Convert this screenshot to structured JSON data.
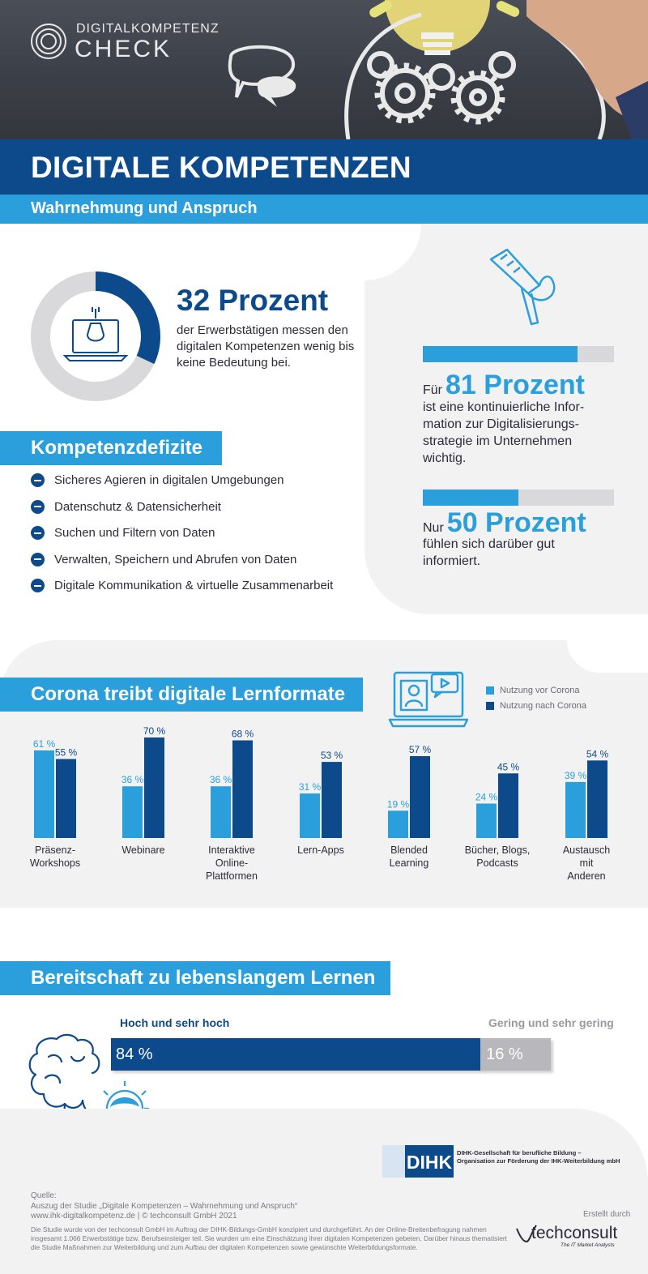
{
  "brand": {
    "line1": "DIGITALKOMPETENZ",
    "line2": "CHECK"
  },
  "header": {
    "title": "DIGITALE KOMPETENZEN",
    "subtitle": "Wahrnehmung und Anspruch"
  },
  "colors": {
    "dark_blue": "#0d4a8c",
    "light_blue": "#2a9fdb",
    "grey": "#d9d9db",
    "panel": "#f2f2f3"
  },
  "stat32": {
    "value": 32,
    "headline": "32 Prozent",
    "text": "der Erwerbstätigen messen den digitalen Kompetenzen wenig bis keine Bedeutung bei."
  },
  "stat81": {
    "prefix": "Für",
    "value": 81,
    "number_label": "81 Prozent",
    "text": "ist eine kontinuierliche Infor-mation zur Digitalisierungs-strategie im Unternehmen wichtig."
  },
  "stat50": {
    "prefix": "Nur",
    "value": 50,
    "number_label": "50 Prozent",
    "text": "fühlen sich darüber gut informiert."
  },
  "deficits": {
    "title": "Kompetenzdefizite",
    "items": [
      "Sicheres Agieren in digitalen Umgebungen",
      "Datenschutz & Datensicherheit",
      "Suchen und Filtern von Daten",
      "Verwalten, Speichern und Abrufen von Daten",
      "Digitale Kommunikation & virtuelle Zusammenarbeit"
    ]
  },
  "chart_data": {
    "type": "bar",
    "title": "Corona treibt digitale Lernformate",
    "categories": [
      [
        "Präsenz-",
        "Workshops"
      ],
      [
        "Webinare"
      ],
      [
        "Interaktive",
        "Online-",
        "Plattformen"
      ],
      [
        "Lern-Apps"
      ],
      [
        "Blended",
        "Learning"
      ],
      [
        "Bücher, Blogs,",
        "Podcasts"
      ],
      [
        "Austausch",
        "mit",
        "Anderen"
      ]
    ],
    "series": [
      {
        "name": "Nutzung vor Corona",
        "color": "#2a9fdb",
        "values": [
          61,
          36,
          36,
          31,
          19,
          24,
          39
        ]
      },
      {
        "name": "Nutzung nach Corona",
        "color": "#0d4a8c",
        "values": [
          55,
          70,
          68,
          53,
          57,
          45,
          54
        ]
      }
    ],
    "value_suffix": " %",
    "ylim": [
      0,
      75
    ],
    "legend": "top-right",
    "grid": false
  },
  "lifelong": {
    "title": "Bereitschaft zu lebenslangem Lernen",
    "high_label": "Hoch und sehr hoch",
    "low_label": "Gering und sehr gering",
    "high_value": 84,
    "low_value": 16,
    "high_text": "84 %",
    "low_text": "16 %"
  },
  "footer": {
    "dihk_logo": "DIHK",
    "dihk_line1": "DIHK-Gesellschaft für berufliche Bildung –",
    "dihk_line2": "Organisation zur Förderung der IHK-Weiterbildung mbH",
    "source_label": "Quelle:",
    "source_line1": "Auszug der Studie „Digitale Kompetenzen – Wahrnehmung und Anspruch“",
    "source_line2": "www.ihk-digitalkompetenz.de | © techconsult GmbH 2021",
    "study_note": "Die Studie wurde von der techconsult GmbH im Auftrag der DIHK-Bildungs-GmbH konzipiert und durchgeführt. An der Online-Breitenbefragung nahmen insgesamt 1.066 Erwerbstätige bzw. Berufseinsteiger teil. Sie wurden um eine Einschätzung ihrer digitalen Kompetenzen gebeten. Darüber hinaus thematisiert die Studie Maßnahmen zur Weiterbildung und zum Aufbau der digitalen Kompetenzen sowie gewünschte Weiterbildungsformate.",
    "created_by": "Erstellt durch",
    "tc_logo": "techconsult",
    "tc_tagline": "The IT Market Analysts"
  }
}
